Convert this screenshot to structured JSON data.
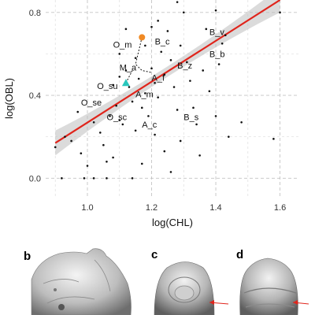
{
  "chart_data": {
    "type": "scatter",
    "xlabel": "log(CHL)",
    "ylabel": "log(OBL)",
    "xlim": [
      0.87,
      1.66
    ],
    "ylim": [
      -0.09,
      0.86
    ],
    "xticks": [
      1.0,
      1.2,
      1.4,
      1.6
    ],
    "xtick_labels": [
      "1.0",
      "1.2",
      "1.4",
      "1.6"
    ],
    "yticks": [
      0.0,
      0.4,
      0.8
    ],
    "ytick_labels": [
      "0.0",
      "0.4",
      "0.8"
    ],
    "grid": true,
    "regression": {
      "color": "#e0241b",
      "x": [
        0.9,
        1.6
      ],
      "y": [
        0.17,
        0.86
      ],
      "band_halfwidth_ends": 0.06,
      "band_halfwidth_mid": 0.025
    },
    "points": [
      [
        0.9,
        0.15
      ],
      [
        0.92,
        0.0
      ],
      [
        0.93,
        0.2
      ],
      [
        0.95,
        0.18
      ],
      [
        0.97,
        0.32
      ],
      [
        0.98,
        0.12
      ],
      [
        0.99,
        0.0
      ],
      [
        1.0,
        0.06
      ],
      [
        1.02,
        0.27
      ],
      [
        1.04,
        0.22
      ],
      [
        1.05,
        0.16
      ],
      [
        1.06,
        0.08
      ],
      [
        1.07,
        0.3
      ],
      [
        1.08,
        0.45
      ],
      [
        1.08,
        0.1
      ],
      [
        1.09,
        0.35
      ],
      [
        1.1,
        0.6
      ],
      [
        1.1,
        0.49
      ],
      [
        1.1,
        0.28
      ],
      [
        1.11,
        0.26
      ],
      [
        1.12,
        0.72
      ],
      [
        1.12,
        0.52
      ],
      [
        1.13,
        0.44
      ],
      [
        1.14,
        0.37
      ],
      [
        1.14,
        0.0
      ],
      [
        1.15,
        0.58
      ],
      [
        1.15,
        0.23
      ],
      [
        1.16,
        0.48
      ],
      [
        1.17,
        0.34
      ],
      [
        1.17,
        0.07
      ],
      [
        1.18,
        0.64
      ],
      [
        1.18,
        0.41
      ],
      [
        1.19,
        0.3
      ],
      [
        1.2,
        0.73
      ],
      [
        1.2,
        0.53
      ],
      [
        1.21,
        0.46
      ],
      [
        1.21,
        0.21
      ],
      [
        1.22,
        0.39
      ],
      [
        1.23,
        0.61
      ],
      [
        1.24,
        0.5
      ],
      [
        1.24,
        0.13
      ],
      [
        1.25,
        0.71
      ],
      [
        1.26,
        0.57
      ],
      [
        1.26,
        0.03
      ],
      [
        1.27,
        0.44
      ],
      [
        1.28,
        0.33
      ],
      [
        1.29,
        0.64
      ],
      [
        1.29,
        0.18
      ],
      [
        1.3,
        0.8
      ],
      [
        1.31,
        0.56
      ],
      [
        1.32,
        0.47
      ],
      [
        1.33,
        0.34
      ],
      [
        1.34,
        0.26
      ],
      [
        1.35,
        0.11
      ],
      [
        1.36,
        0.52
      ],
      [
        1.37,
        0.72
      ],
      [
        1.38,
        0.42
      ],
      [
        1.4,
        0.3
      ],
      [
        1.41,
        0.55
      ],
      [
        1.42,
        0.65
      ],
      [
        1.43,
        0.69
      ],
      [
        1.44,
        0.2
      ],
      [
        1.48,
        0.27
      ],
      [
        1.58,
        0.19
      ],
      [
        1.6,
        0.8
      ],
      [
        1.02,
        0.0
      ],
      [
        1.06,
        0.0
      ],
      [
        1.22,
        0.76
      ],
      [
        1.28,
        0.85
      ],
      [
        1.4,
        0.81
      ]
    ],
    "highlight_points": [
      {
        "name": "",
        "x": 1.17,
        "y": 0.68,
        "color": "#f08a24",
        "shape": "circle"
      },
      {
        "name": "",
        "x": 1.12,
        "y": 0.46,
        "color": "#29c7bd",
        "shape": "triangle"
      }
    ],
    "annotations": [
      {
        "text": "O_m",
        "x": 1.08,
        "y": 0.63
      },
      {
        "text": "B_c",
        "x": 1.21,
        "y": 0.645
      },
      {
        "text": "B_v",
        "x": 1.38,
        "y": 0.69
      },
      {
        "text": "M_a",
        "x": 1.1,
        "y": 0.52
      },
      {
        "text": "B_b",
        "x": 1.38,
        "y": 0.585
      },
      {
        "text": "B_z",
        "x": 1.28,
        "y": 0.53
      },
      {
        "text": "O_su",
        "x": 1.03,
        "y": 0.43
      },
      {
        "text": "A_f",
        "x": 1.2,
        "y": 0.47
      },
      {
        "text": "A_m",
        "x": 1.15,
        "y": 0.39
      },
      {
        "text": "O_se",
        "x": 0.98,
        "y": 0.35
      },
      {
        "text": "O_sc",
        "x": 1.06,
        "y": 0.28
      },
      {
        "text": "B_s",
        "x": 1.3,
        "y": 0.28
      },
      {
        "text": "A_c",
        "x": 1.17,
        "y": 0.245
      }
    ],
    "connector": [
      [
        1.17,
        0.68
      ],
      [
        1.15,
        0.55
      ],
      [
        1.17,
        0.52
      ],
      [
        1.2,
        0.51
      ]
    ],
    "connector2": [
      [
        1.12,
        0.46
      ],
      [
        1.14,
        0.52
      ]
    ]
  },
  "panels": [
    {
      "label": "b"
    },
    {
      "label": "c"
    },
    {
      "label": "d"
    }
  ]
}
